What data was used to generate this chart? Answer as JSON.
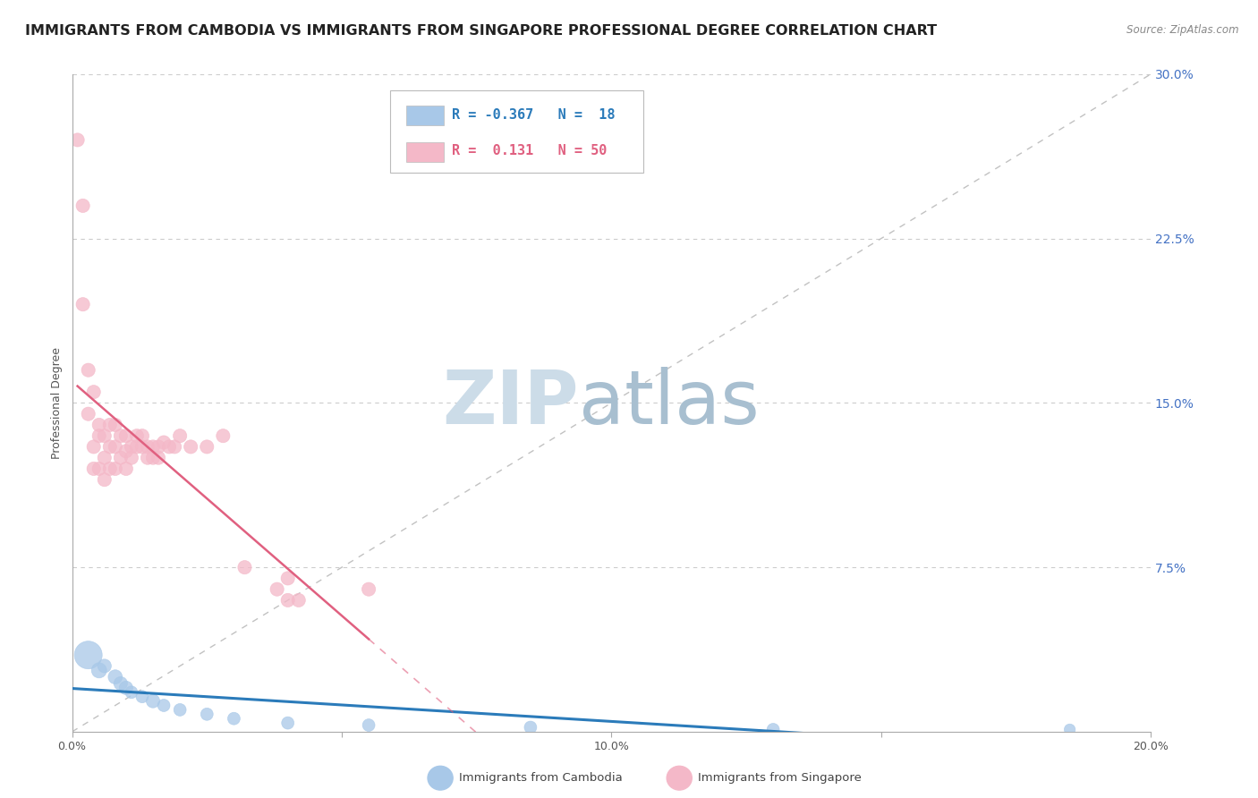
{
  "title": "IMMIGRANTS FROM CAMBODIA VS IMMIGRANTS FROM SINGAPORE PROFESSIONAL DEGREE CORRELATION CHART",
  "source": "Source: ZipAtlas.com",
  "ylabel": "Professional Degree",
  "xlim": [
    0.0,
    0.2
  ],
  "ylim": [
    0.0,
    0.3
  ],
  "yticks": [
    0.0,
    0.075,
    0.15,
    0.225,
    0.3
  ],
  "ytick_labels": [
    "",
    "7.5%",
    "15.0%",
    "22.5%",
    "30.0%"
  ],
  "xticks": [
    0.0,
    0.05,
    0.1,
    0.15,
    0.2
  ],
  "xtick_labels": [
    "0.0%",
    "",
    "10.0%",
    "",
    "20.0%"
  ],
  "legend_entries": [
    {
      "label_r": "R = -0.367",
      "label_n": "N =  18",
      "color": "#a8c8e8"
    },
    {
      "label_r": "R =  0.131",
      "label_n": "N = 50",
      "color": "#f4b8c8"
    }
  ],
  "bottom_legend": [
    {
      "label": "Immigrants from Cambodia",
      "color": "#a8c8e8"
    },
    {
      "label": "Immigrants from Singapore",
      "color": "#f4b8c8"
    }
  ],
  "cambodia_scatter": {
    "x": [
      0.003,
      0.005,
      0.006,
      0.008,
      0.009,
      0.01,
      0.011,
      0.013,
      0.015,
      0.017,
      0.02,
      0.025,
      0.03,
      0.04,
      0.055,
      0.085,
      0.13,
      0.185
    ],
    "y": [
      0.035,
      0.028,
      0.03,
      0.025,
      0.022,
      0.02,
      0.018,
      0.016,
      0.014,
      0.012,
      0.01,
      0.008,
      0.006,
      0.004,
      0.003,
      0.002,
      0.001,
      0.001
    ],
    "sizes": [
      500,
      150,
      120,
      130,
      120,
      120,
      100,
      100,
      120,
      100,
      100,
      100,
      100,
      100,
      100,
      100,
      100,
      80
    ],
    "color": "#a8c8e8",
    "alpha": 0.75,
    "R": -0.367,
    "N": 18
  },
  "singapore_scatter": {
    "x": [
      0.001,
      0.002,
      0.002,
      0.003,
      0.003,
      0.004,
      0.004,
      0.004,
      0.005,
      0.005,
      0.005,
      0.006,
      0.006,
      0.006,
      0.007,
      0.007,
      0.007,
      0.008,
      0.008,
      0.008,
      0.009,
      0.009,
      0.01,
      0.01,
      0.01,
      0.011,
      0.011,
      0.012,
      0.012,
      0.013,
      0.013,
      0.014,
      0.014,
      0.015,
      0.015,
      0.016,
      0.016,
      0.017,
      0.018,
      0.019,
      0.02,
      0.022,
      0.025,
      0.028,
      0.032,
      0.04,
      0.038,
      0.04,
      0.042,
      0.055
    ],
    "y": [
      0.27,
      0.24,
      0.195,
      0.145,
      0.165,
      0.13,
      0.155,
      0.12,
      0.14,
      0.135,
      0.12,
      0.135,
      0.125,
      0.115,
      0.14,
      0.13,
      0.12,
      0.14,
      0.13,
      0.12,
      0.135,
      0.125,
      0.135,
      0.128,
      0.12,
      0.13,
      0.125,
      0.135,
      0.13,
      0.135,
      0.13,
      0.13,
      0.125,
      0.13,
      0.125,
      0.13,
      0.125,
      0.132,
      0.13,
      0.13,
      0.135,
      0.13,
      0.13,
      0.135,
      0.075,
      0.07,
      0.065,
      0.06,
      0.06,
      0.065
    ],
    "sizes": [
      120,
      120,
      120,
      120,
      120,
      120,
      120,
      120,
      120,
      120,
      120,
      120,
      120,
      120,
      120,
      120,
      120,
      120,
      120,
      120,
      120,
      120,
      120,
      120,
      120,
      120,
      120,
      120,
      120,
      120,
      120,
      120,
      120,
      120,
      120,
      120,
      120,
      120,
      120,
      120,
      120,
      120,
      120,
      120,
      120,
      120,
      120,
      120,
      120,
      120
    ],
    "color": "#f4b8c8",
    "alpha": 0.75,
    "R": 0.131,
    "N": 50
  },
  "bg_color": "#ffffff",
  "grid_color": "#cccccc",
  "title_fontsize": 11.5,
  "axis_label_fontsize": 9,
  "tick_fontsize": 9,
  "watermark_color_zip": "#ccdce8",
  "watermark_color_atlas": "#a8bfd0"
}
